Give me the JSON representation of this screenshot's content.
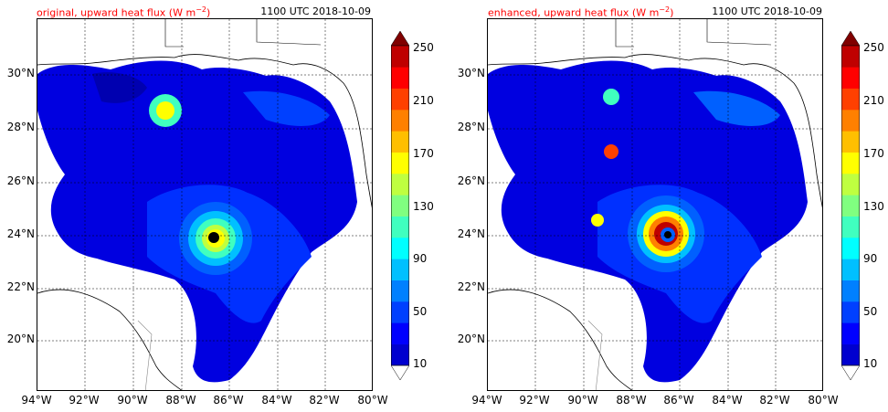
{
  "panels": [
    {
      "title_text": "original, upward heat flux (W m",
      "title_sup": "−2",
      "title_close": ")",
      "time": "1100 UTC 2018-10-09"
    },
    {
      "title_text": "enhanced, upward heat flux (W m",
      "title_sup": "−2",
      "title_close": ")",
      "time": "1100 UTC 2018-10-09"
    }
  ],
  "lat_labels": [
    "30°N",
    "28°N",
    "26°N",
    "24°N",
    "22°N",
    "20°N"
  ],
  "lon_labels": [
    "94°W",
    "92°W",
    "90°W",
    "88°W",
    "86°W",
    "84°W",
    "82°W",
    "80°W"
  ],
  "colorbar": {
    "labels": [
      "250",
      "210",
      "170",
      "130",
      "90",
      "50",
      "10"
    ],
    "colors": [
      "#00008f",
      "#0000cf",
      "#0000ff",
      "#0040ff",
      "#0080ff",
      "#00c0ff",
      "#00ffff",
      "#40ffbf",
      "#80ff80",
      "#bfff40",
      "#ffff00",
      "#ffbf00",
      "#ff8000",
      "#ff4000",
      "#ff0000",
      "#bf0000",
      "#800000"
    ]
  }
}
